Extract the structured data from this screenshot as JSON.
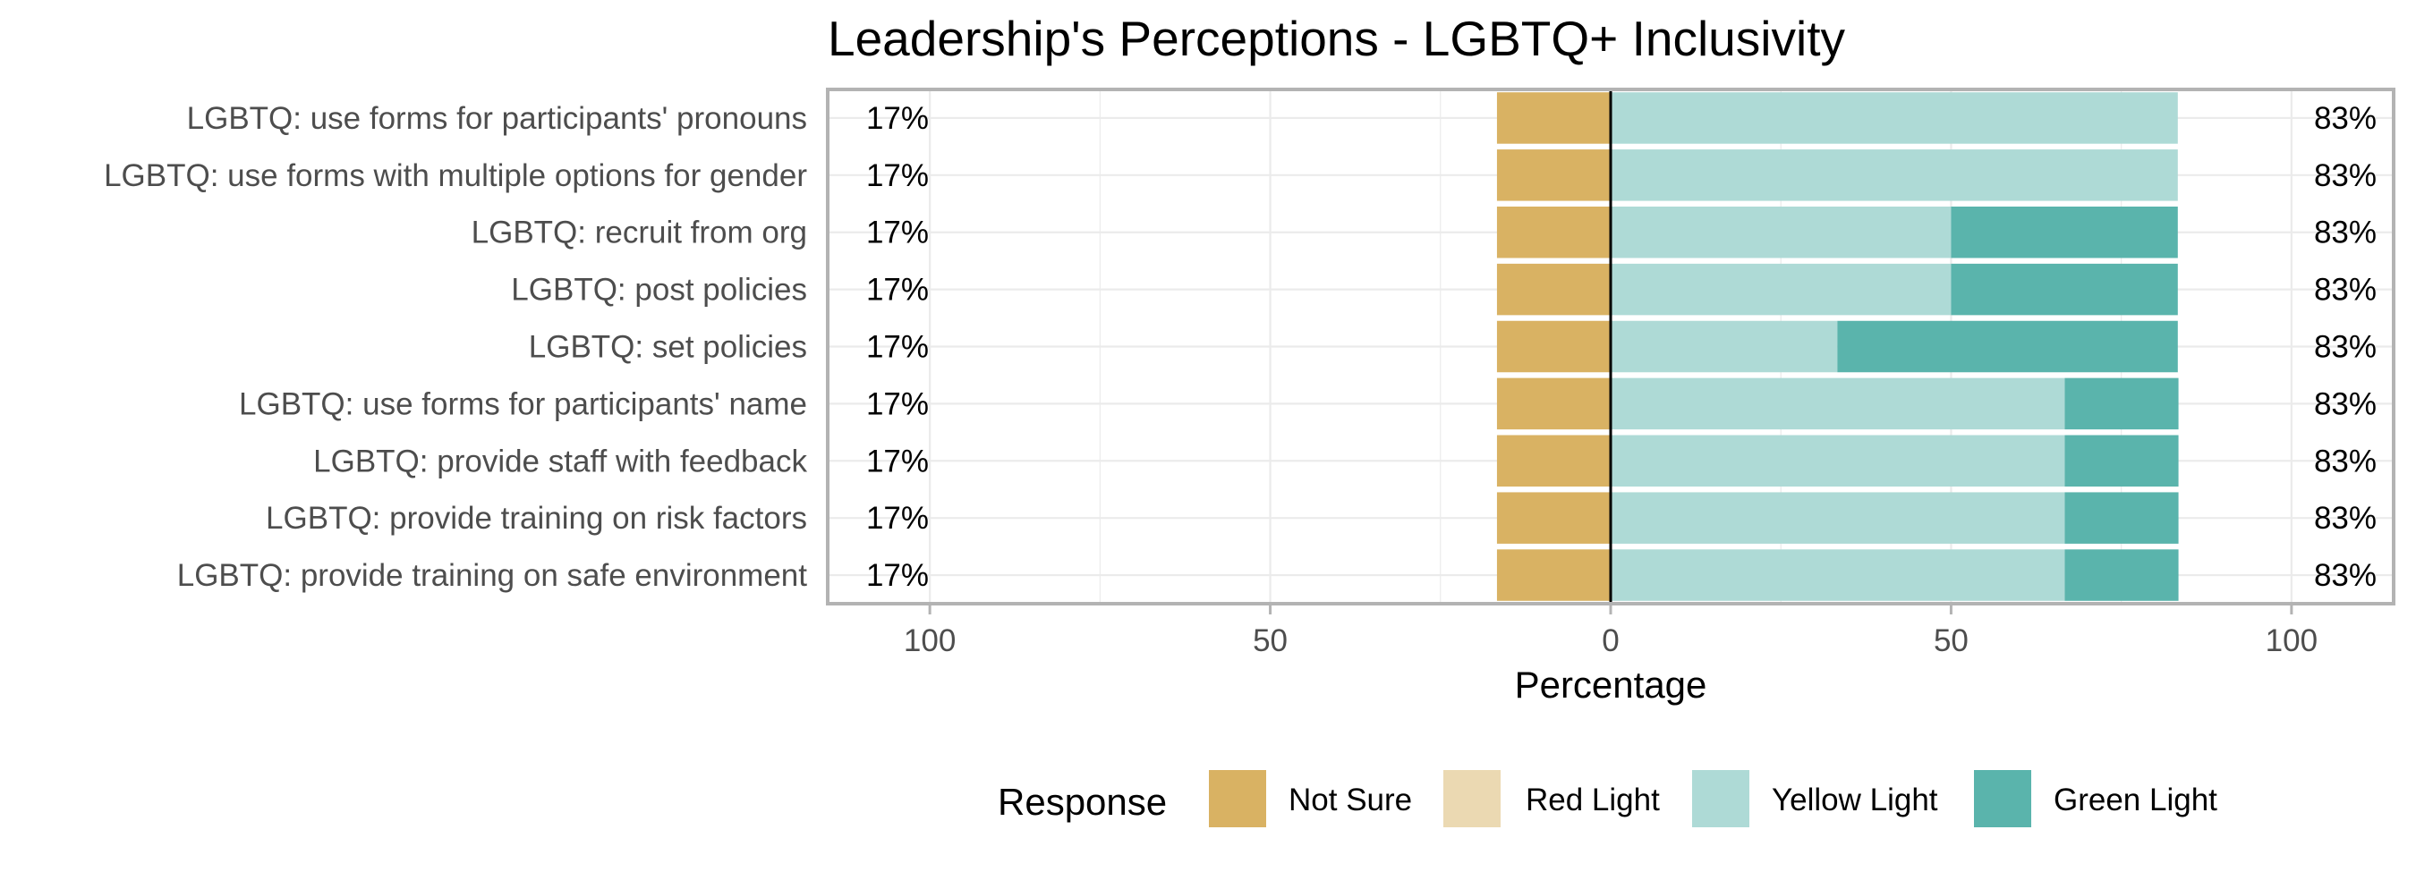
{
  "chart_data": {
    "type": "bar",
    "stacking": "diverging",
    "title": "Leadership's Perceptions - LGBTQ+ Inclusivity",
    "xlabel": "Percentage",
    "ylabel": "",
    "xlim": [
      -100,
      100
    ],
    "x_ticks": [
      -100,
      -50,
      0,
      50,
      100
    ],
    "x_tick_labels": [
      "100",
      "50",
      "0",
      "50",
      "100"
    ],
    "grid": true,
    "legend": {
      "title": "Response",
      "placement": "bottom",
      "entries": [
        "Not Sure",
        "Red Light",
        "Yellow Light",
        "Green Light"
      ]
    },
    "colors": {
      "Not Sure": "#d9b263",
      "Red Light": "#ebd9b2",
      "Yellow Light": "#aedad6",
      "Green Light": "#5ab4ac"
    },
    "categories": [
      "LGBTQ: use forms for participants' pronouns",
      "LGBTQ: use forms with multiple options for gender",
      "LGBTQ: recruit from org",
      "LGBTQ: post policies",
      "LGBTQ: set policies",
      "LGBTQ: use forms for participants' name",
      "LGBTQ: provide staff with feedback",
      "LGBTQ: provide training on risk factors",
      "LGBTQ: provide training on safe environment"
    ],
    "series": [
      {
        "name": "Not Sure",
        "values": [
          16.7,
          16.7,
          16.7,
          16.7,
          16.7,
          16.7,
          16.7,
          16.7,
          16.7
        ]
      },
      {
        "name": "Red Light",
        "values": [
          0,
          0,
          0,
          0,
          0,
          0,
          0,
          0,
          0
        ]
      },
      {
        "name": "Yellow Light",
        "values": [
          83.3,
          83.3,
          50,
          50,
          33.3,
          66.7,
          66.7,
          66.7,
          66.7
        ]
      },
      {
        "name": "Green Light",
        "values": [
          0,
          0,
          33.3,
          33.3,
          50,
          16.7,
          16.7,
          16.7,
          16.7
        ]
      }
    ],
    "left_labels": [
      "17%",
      "17%",
      "17%",
      "17%",
      "17%",
      "17%",
      "17%",
      "17%",
      "17%"
    ],
    "right_labels": [
      "83%",
      "83%",
      "83%",
      "83%",
      "83%",
      "83%",
      "83%",
      "83%",
      "83%"
    ]
  }
}
